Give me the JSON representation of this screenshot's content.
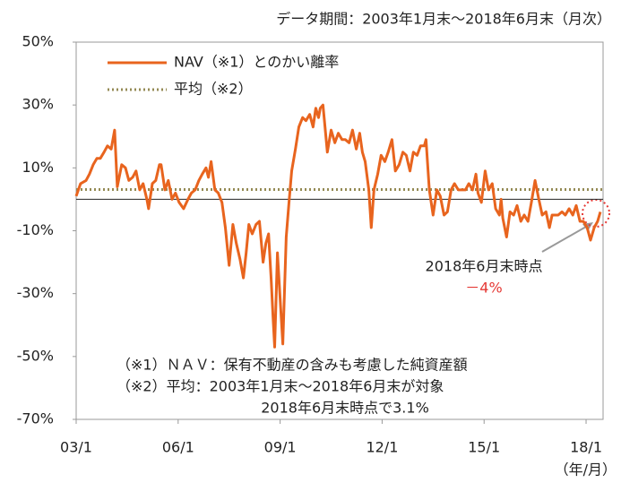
{
  "chart_data": {
    "type": "line",
    "subtitle": "データ期間：2003年1月末～2018年6月末（月次）",
    "x_unit_label": "（年/月）",
    "x": [
      2003.0,
      2003.13,
      2003.29,
      2003.39,
      2003.5,
      2003.61,
      2003.71,
      2003.82,
      2003.92,
      2004.03,
      2004.13,
      2004.21,
      2004.34,
      2004.45,
      2004.55,
      2004.66,
      2004.76,
      2004.87,
      2004.97,
      2005.08,
      2005.13,
      2005.24,
      2005.34,
      2005.45,
      2005.5,
      2005.61,
      2005.71,
      2005.82,
      2005.92,
      2006.03,
      2006.16,
      2006.29,
      2006.39,
      2006.5,
      2006.61,
      2006.71,
      2006.82,
      2006.89,
      2006.97,
      2007.08,
      2007.18,
      2007.29,
      2007.39,
      2007.5,
      2007.61,
      2007.71,
      2007.82,
      2007.92,
      2008.0,
      2008.08,
      2008.18,
      2008.29,
      2008.39,
      2008.5,
      2008.58,
      2008.66,
      2008.74,
      2008.79,
      2008.84,
      2008.92,
      2009.08,
      2009.18,
      2009.26,
      2009.34,
      2009.45,
      2009.55,
      2009.66,
      2009.76,
      2009.87,
      2009.97,
      2010.05,
      2010.13,
      2010.18,
      2010.26,
      2010.32,
      2010.39,
      2010.5,
      2010.61,
      2010.71,
      2010.82,
      2010.92,
      2011.03,
      2011.13,
      2011.24,
      2011.34,
      2011.42,
      2011.5,
      2011.61,
      2011.68,
      2011.76,
      2011.87,
      2011.97,
      2012.08,
      2012.18,
      2012.29,
      2012.39,
      2012.5,
      2012.61,
      2012.71,
      2012.82,
      2012.92,
      2013.03,
      2013.13,
      2013.24,
      2013.29,
      2013.39,
      2013.5,
      2013.61,
      2013.71,
      2013.82,
      2013.92,
      2014.03,
      2014.13,
      2014.24,
      2014.34,
      2014.45,
      2014.55,
      2014.66,
      2014.76,
      2014.82,
      2014.92,
      2015.03,
      2015.13,
      2015.24,
      2015.34,
      2015.45,
      2015.5,
      2015.55,
      2015.66,
      2015.76,
      2015.87,
      2015.97,
      2016.08,
      2016.18,
      2016.29,
      2016.39,
      2016.5,
      2016.61,
      2016.71,
      2016.82,
      2016.92,
      2017.0,
      2017.08,
      2017.18,
      2017.29,
      2017.39,
      2017.5,
      2017.61,
      2017.71,
      2017.82,
      2017.92,
      2018.03,
      2018.13,
      2018.24,
      2018.34,
      2018.42
    ],
    "series": [
      {
        "name": "NAV（※1）とのかい離率",
        "color": "#e8641e",
        "values": [
          1,
          5,
          6,
          8,
          11,
          13,
          13,
          15,
          17,
          16,
          22,
          4,
          11,
          10,
          6,
          7,
          9,
          3,
          5,
          0,
          -3,
          5,
          6,
          11,
          11,
          3,
          6,
          0,
          2,
          -1,
          -3,
          0,
          2,
          3,
          6,
          8,
          10,
          7,
          12,
          3,
          2,
          -1,
          -9,
          -21,
          -8,
          -14,
          -19,
          -25,
          -17,
          -8,
          -11,
          -8,
          -7,
          -20,
          -14,
          -11,
          -26,
          -37,
          -47,
          -17,
          -46,
          -12,
          -1,
          9,
          16,
          23,
          26,
          25,
          27,
          23,
          29,
          26,
          29,
          30,
          23,
          15,
          22,
          18,
          21,
          19,
          19,
          18,
          22,
          16,
          21,
          15,
          12,
          3,
          -9,
          3,
          8,
          14,
          12,
          15,
          19,
          9,
          11,
          15,
          14,
          9,
          15,
          14,
          17,
          17,
          19,
          3,
          -5,
          3,
          1,
          -5,
          -4,
          3,
          5,
          3,
          3,
          3,
          5,
          3,
          8,
          2,
          -1,
          9,
          3,
          5,
          -3,
          -5,
          0,
          -6,
          -12,
          -4,
          -5,
          -2,
          -7,
          -5,
          -7,
          -1,
          6,
          0,
          -5,
          -4,
          -9,
          -5,
          -5,
          -5,
          -4,
          -5,
          -3,
          -5,
          -2,
          -7,
          -7,
          -9,
          -13,
          -9,
          -7,
          -4
        ]
      }
    ],
    "average": {
      "name": "平均（※2）",
      "value": 3.1,
      "color": "#948a54"
    },
    "xlim": [
      2003,
      2018.5
    ],
    "xticks": [
      {
        "value": 2003,
        "label": "03/1"
      },
      {
        "value": 2006,
        "label": "06/1"
      },
      {
        "value": 2009,
        "label": "09/1"
      },
      {
        "value": 2012,
        "label": "12/1"
      },
      {
        "value": 2015,
        "label": "15/1"
      },
      {
        "value": 2018,
        "label": "18/1"
      }
    ],
    "ylim": [
      -70,
      50
    ],
    "yticks": [
      {
        "value": -70,
        "label": "-70%"
      },
      {
        "value": -50,
        "label": "-50%"
      },
      {
        "value": -30,
        "label": "-30%"
      },
      {
        "value": -10,
        "label": "-10%"
      },
      {
        "value": 10,
        "label": "10%"
      },
      {
        "value": 30,
        "label": "30%"
      },
      {
        "value": 50,
        "label": "50%"
      }
    ],
    "annotation": {
      "text": "2018年6月末時点",
      "value_label": "－4%",
      "color": "#e53935"
    },
    "notes": [
      "（※1）ＮＡＶ：保有不動産の含みも考慮した純資産額",
      "（※2）平均：2003年1月末～2018年6月末が対象",
      "2018年6月末時点で3.1%"
    ]
  }
}
